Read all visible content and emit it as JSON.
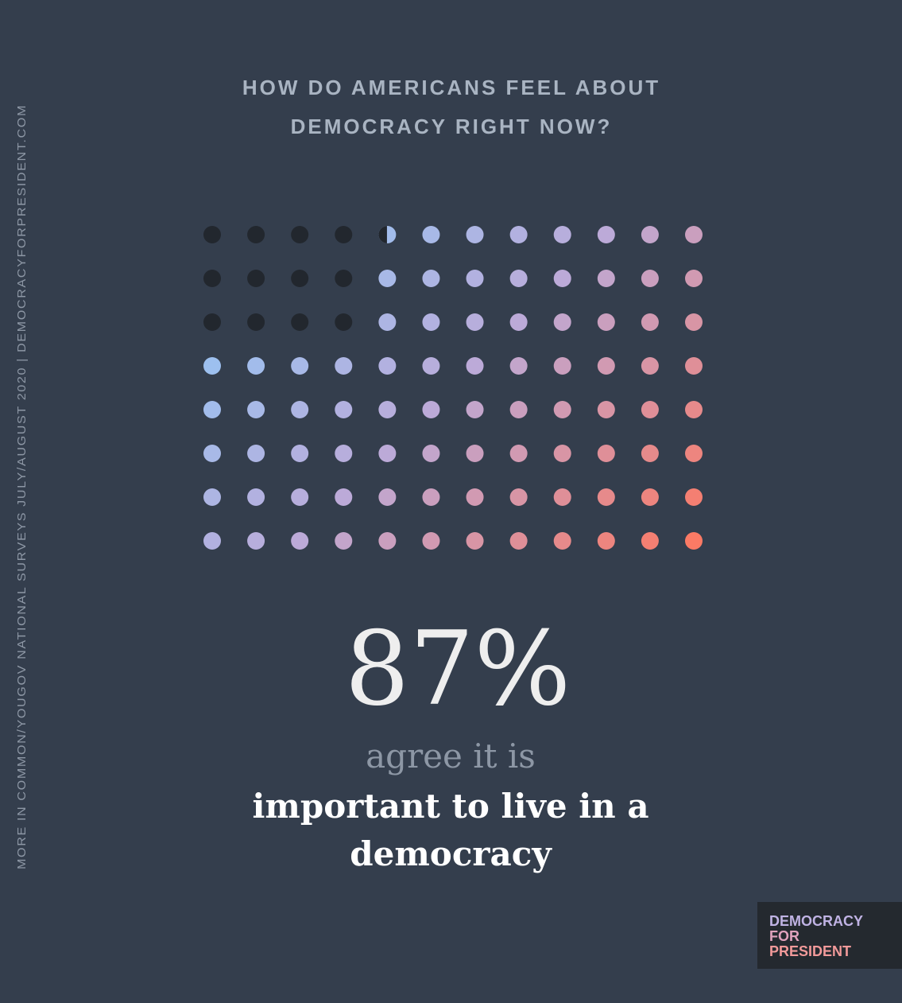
{
  "chart_data": {
    "type": "waffle",
    "title_lines": [
      "HOW DO AMERICANS FEEL ABOUT",
      "DEMOCRACY RIGHT NOW?"
    ],
    "values": [
      87
    ],
    "value_labels": [
      "87%"
    ],
    "caption_lead": "agree it is",
    "caption_lines": [
      "important to live in a",
      "democracy"
    ],
    "source": "MORE IN COMMON/YOUGOV NATIONAL SURVEYS JULY/AUGUST 2020  |  DEMOCRACYFORPRESIDENT.COM",
    "logo_lines": [
      "DEMOCRACY",
      "FOR",
      "PRESIDENT"
    ],
    "empty_color": "#22272e",
    "gradient": [
      "#8ecbfa",
      "#bcaad8",
      "#fb7a65"
    ]
  }
}
